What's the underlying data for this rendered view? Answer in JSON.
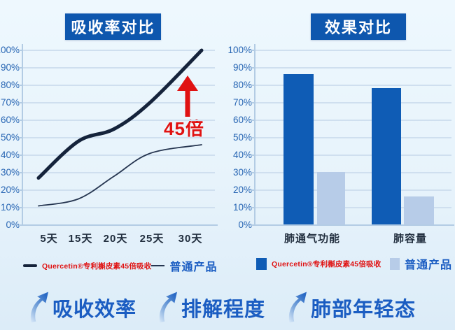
{
  "colors": {
    "background": "#e7f3fb",
    "title_box": "#0e57ae",
    "title_text": "#ffffff",
    "grid_line": "#cfdfef",
    "axis_line": "#b3cce4",
    "y_tick_label": "#2765b3",
    "x_tick_label": "#222f3f",
    "brand_line": "#15233b",
    "generic_line": "#253550",
    "brand_bar": "#0f5cb5",
    "generic_bar": "#b7cce8",
    "accent_red": "#e01212",
    "legend_blue": "#1b5dc2",
    "footer_text": "#1b5dc2"
  },
  "chart_data": [
    {
      "type": "line",
      "title": "吸收率对比",
      "x_labels": [
        "5天",
        "15天",
        "20天",
        "25天",
        "30天"
      ],
      "yticks": [
        "0%",
        "10%",
        "20%",
        "30%",
        "40%",
        "50%",
        "60%",
        "70%",
        "80%",
        "90%",
        "100%"
      ],
      "ylim": [
        0,
        100
      ],
      "grid": true,
      "legend_position": "bottom",
      "series": [
        {
          "name": "Quercetin®专利槲皮素45倍吸收",
          "values": [
            27,
            48,
            55,
            70,
            100
          ],
          "color": "#15233b",
          "stroke_width": 5
        },
        {
          "name": "普通产品",
          "values": [
            11,
            15,
            28,
            41,
            46
          ],
          "color": "#253550",
          "stroke_width": 1.8
        }
      ],
      "annotation": {
        "text": "45倍",
        "color": "#e01212",
        "arrow": "up"
      }
    },
    {
      "type": "bar",
      "title": "效果对比",
      "categories": [
        "肺通气功能",
        "肺容量"
      ],
      "yticks": [
        "0%",
        "10%",
        "20%",
        "30%",
        "40%",
        "50%",
        "60%",
        "70%",
        "80%",
        "90%",
        "100%"
      ],
      "ylim": [
        0,
        100
      ],
      "grid": true,
      "legend_position": "bottom",
      "series": [
        {
          "name": "Quercetin®专利槲皮素45倍吸收",
          "values": [
            86,
            78
          ],
          "color": "#0f5cb5"
        },
        {
          "name": "普通产品",
          "values": [
            30,
            16
          ],
          "color": "#b7cce8"
        }
      ]
    }
  ],
  "footer": {
    "items": [
      {
        "label": "吸收效率"
      },
      {
        "label": "排解程度"
      },
      {
        "label": "肺部年轻态"
      }
    ]
  }
}
